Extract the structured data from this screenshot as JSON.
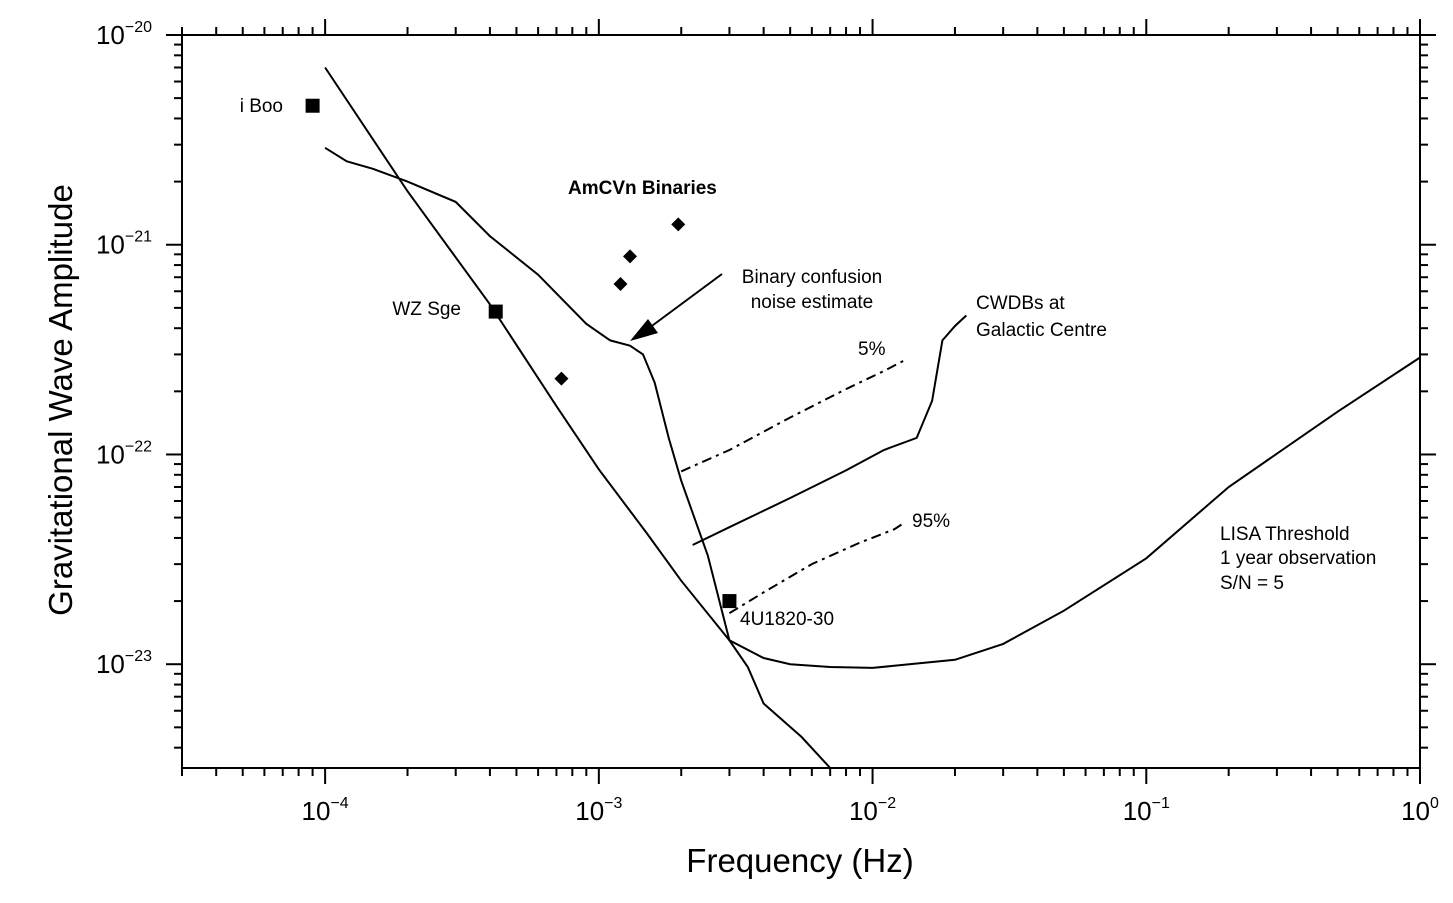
{
  "chart_data": {
    "type": "line",
    "xlabel": "Frequency  (Hz)",
    "ylabel": "Gravitational Wave Amplitude",
    "xscale": "log",
    "yscale": "log",
    "xlim": [
      3e-05,
      1
    ],
    "ylim": [
      3.2e-24,
      1e-20
    ],
    "x_ticks": [
      {
        "base": "10",
        "exp": "−4",
        "value": 0.0001
      },
      {
        "base": "10",
        "exp": "−3",
        "value": 0.001
      },
      {
        "base": "10",
        "exp": "−2",
        "value": 0.01
      },
      {
        "base": "10",
        "exp": "−1",
        "value": 0.1
      },
      {
        "base": "10",
        "exp": "0",
        "value": 1
      }
    ],
    "y_ticks": [
      {
        "base": "10",
        "exp": "−20",
        "value": 1e-20
      },
      {
        "base": "10",
        "exp": "−21",
        "value": 1e-21
      },
      {
        "base": "10",
        "exp": "−22",
        "value": 1e-22
      },
      {
        "base": "10",
        "exp": "−23",
        "value": 1e-23
      }
    ],
    "grid": false,
    "series": [
      {
        "name": "LISA Threshold 1 year observation S/N = 5",
        "style": "solid",
        "points": [
          [
            0.0001,
            7e-21
          ],
          [
            0.0002,
            1.8e-21
          ],
          [
            0.0004,
            5.2e-22
          ],
          [
            0.0007,
            1.7e-22
          ],
          [
            0.001,
            8.5e-23
          ],
          [
            0.0015,
            4.2e-23
          ],
          [
            0.002,
            2.5e-23
          ],
          [
            0.003,
            1.3e-23
          ],
          [
            0.004,
            1.07e-23
          ],
          [
            0.005,
            1e-23
          ],
          [
            0.007,
            9.7e-24
          ],
          [
            0.01,
            9.6e-24
          ],
          [
            0.02,
            1.05e-23
          ],
          [
            0.03,
            1.25e-23
          ],
          [
            0.05,
            1.8e-23
          ],
          [
            0.1,
            3.2e-23
          ],
          [
            0.2,
            7e-23
          ],
          [
            0.5,
            1.6e-22
          ],
          [
            1,
            2.9e-22
          ]
        ]
      },
      {
        "name": "Binary confusion noise estimate",
        "style": "solid",
        "points": [
          [
            0.0001,
            2.9e-21
          ],
          [
            0.00012,
            2.5e-21
          ],
          [
            0.00015,
            2.3e-21
          ],
          [
            0.0002,
            2e-21
          ],
          [
            0.0003,
            1.6e-21
          ],
          [
            0.0004,
            1.1e-21
          ],
          [
            0.0006,
            7.2e-22
          ],
          [
            0.0009,
            4.2e-22
          ],
          [
            0.0011,
            3.5e-22
          ],
          [
            0.0013,
            3.3e-22
          ],
          [
            0.00145,
            3e-22
          ],
          [
            0.0016,
            2.2e-22
          ],
          [
            0.0018,
            1.2e-22
          ],
          [
            0.002,
            7.5e-23
          ],
          [
            0.0025,
            3.3e-23
          ],
          [
            0.003,
            1.3e-23
          ],
          [
            0.0035,
            9.7e-24
          ],
          [
            0.004,
            6.5e-24
          ],
          [
            0.0055,
            4.5e-24
          ],
          [
            0.007,
            3.2e-24
          ]
        ]
      },
      {
        "name": "CWDBs at Galactic Centre",
        "style": "solid",
        "points": [
          [
            0.0022,
            3.7e-23
          ],
          [
            0.003,
            4.5e-23
          ],
          [
            0.005,
            6.2e-23
          ],
          [
            0.008,
            8.4e-23
          ],
          [
            0.011,
            1.05e-22
          ],
          [
            0.0145,
            1.2e-22
          ],
          [
            0.0165,
            1.8e-22
          ],
          [
            0.018,
            3.5e-22
          ],
          [
            0.02,
            4.1e-22
          ],
          [
            0.022,
            4.6e-22
          ]
        ]
      },
      {
        "name": "5%",
        "style": "dashed",
        "points": [
          [
            0.002,
            8.3e-23
          ],
          [
            0.003,
            1.05e-22
          ],
          [
            0.005,
            1.5e-22
          ],
          [
            0.008,
            2.05e-22
          ],
          [
            0.011,
            2.5e-22
          ],
          [
            0.013,
            2.8e-22
          ]
        ]
      },
      {
        "name": "95%",
        "style": "dashed",
        "points": [
          [
            0.003,
            1.75e-23
          ],
          [
            0.004,
            2.2e-23
          ],
          [
            0.006,
            3e-23
          ],
          [
            0.009,
            3.8e-23
          ],
          [
            0.012,
            4.4e-23
          ],
          [
            0.013,
            4.7e-23
          ]
        ]
      }
    ],
    "points": [
      {
        "label": "i Boo",
        "marker": "square",
        "x": 9e-05,
        "y": 4.6e-21
      },
      {
        "label": "WZ Sge",
        "marker": "square",
        "x": 0.00042,
        "y": 4.8e-22
      },
      {
        "label": "4U1820-30",
        "marker": "square",
        "x": 0.003,
        "y": 2e-23
      },
      {
        "label": "",
        "marker": "diamond",
        "x": 0.00073,
        "y": 2.3e-22
      },
      {
        "label": "",
        "marker": "diamond",
        "x": 0.0012,
        "y": 6.5e-22
      },
      {
        "label": "",
        "marker": "diamond",
        "x": 0.0013,
        "y": 8.8e-22
      },
      {
        "label": "",
        "marker": "diamond",
        "x": 0.00195,
        "y": 1.25e-21
      }
    ],
    "annotations": {
      "amcvn": "AmCVn Binaries",
      "confusion_line1": "Binary confusion",
      "confusion_line2": "noise estimate",
      "cwdb_line1": "CWDBs at",
      "cwdb_line2": "Galactic Centre",
      "pct5": "5%",
      "pct95": "95%",
      "lisa_line1": "LISA Threshold",
      "lisa_line2": "1 year observation",
      "lisa_line3": "S/N = 5",
      "iboo": "i Boo",
      "wzsge": "WZ Sge",
      "ucx": "4U1820-30"
    }
  }
}
